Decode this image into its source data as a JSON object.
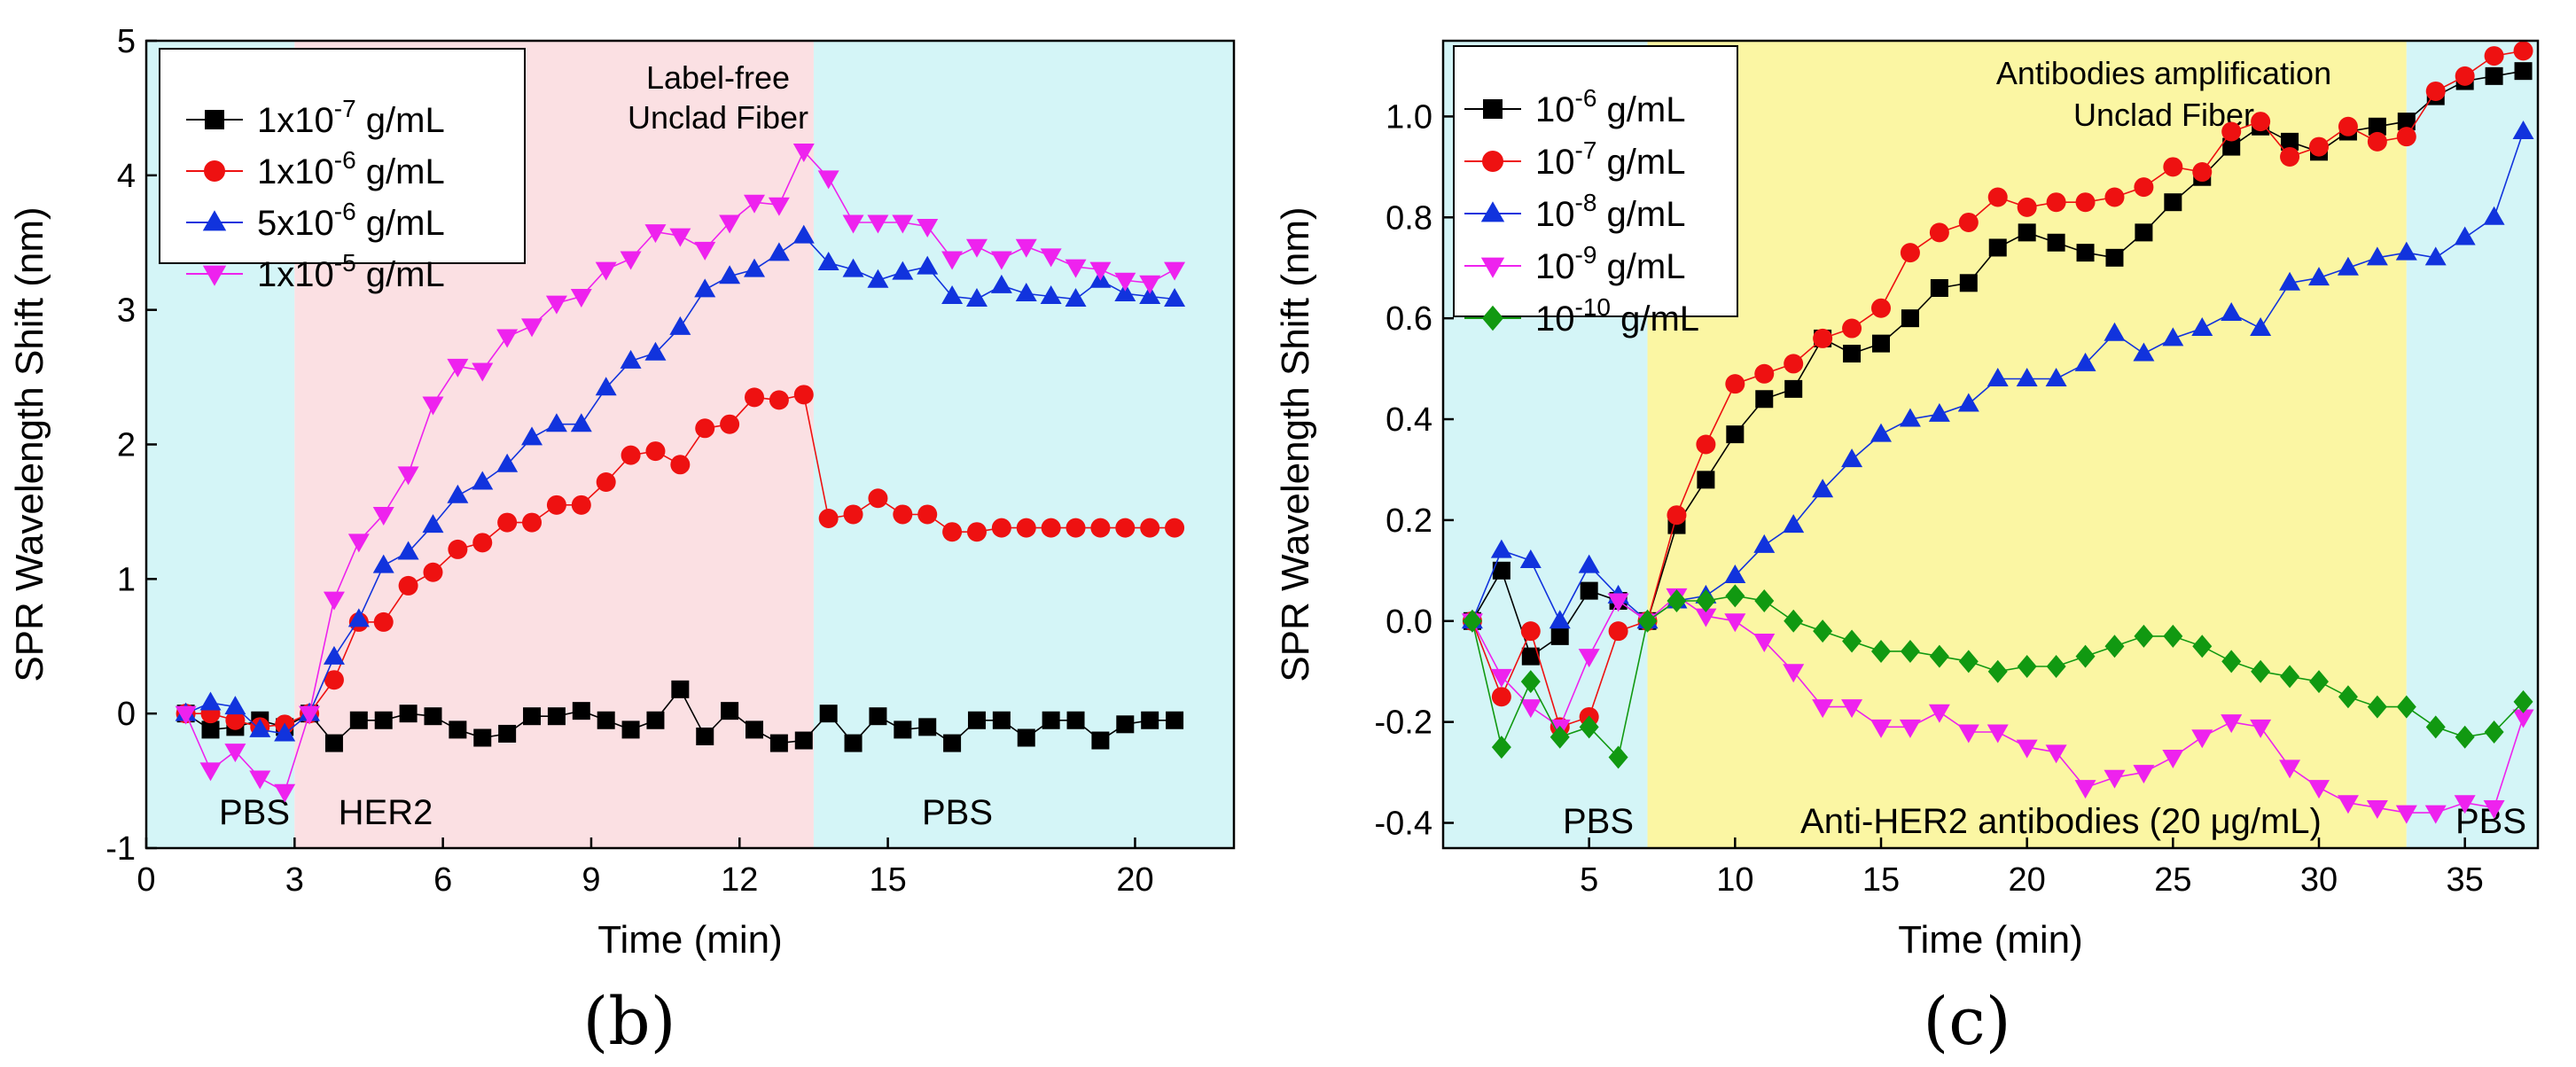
{
  "chart_data": [
    {
      "type": "line",
      "panel_label": "(b)",
      "xlabel": "Time (min)",
      "ylabel": "SPR Wavelength Shift (nm)",
      "xlim": [
        0,
        22
      ],
      "ylim": [
        -1,
        5
      ],
      "xticks": [
        0,
        3,
        6,
        9,
        12,
        15,
        20
      ],
      "yticks": [
        -1,
        0,
        1,
        2,
        3,
        4,
        5
      ],
      "annotation": [
        "Label-free",
        "Unclad Fiber"
      ],
      "regions": [
        {
          "start": 0,
          "end": 3,
          "color": "#d4f5f7",
          "label": "PBS"
        },
        {
          "start": 3,
          "end": 13.5,
          "color": "#fbe0e3",
          "label": "HER2"
        },
        {
          "start": 13.5,
          "end": 22,
          "color": "#d4f5f7",
          "label": "PBS"
        }
      ],
      "legend": [
        {
          "base": "1x10",
          "exp": "-7",
          "unit": " g/mL"
        },
        {
          "base": "1x10",
          "exp": "-6",
          "unit": " g/mL"
        },
        {
          "base": "5x10",
          "exp": "-6",
          "unit": " g/mL"
        },
        {
          "base": "1x10",
          "exp": "-5",
          "unit": " g/mL"
        }
      ],
      "series": [
        {
          "name": "1x10^-7 g/mL",
          "color": "#000000",
          "marker": "square",
          "x": [
            0.8,
            1.3,
            1.8,
            2.3,
            2.8,
            3.3,
            3.8,
            4.3,
            4.8,
            5.3,
            5.8,
            6.3,
            6.8,
            7.3,
            7.8,
            8.3,
            8.8,
            9.3,
            9.8,
            10.3,
            10.8,
            11.3,
            11.8,
            12.3,
            12.8,
            13.3,
            13.8,
            14.3,
            14.8,
            15.3,
            15.8,
            16.3,
            16.8,
            17.3,
            17.8,
            18.3,
            18.8,
            19.3,
            19.8,
            20.3,
            20.8
          ],
          "y": [
            0.0,
            -0.12,
            -0.1,
            -0.05,
            -0.1,
            0.0,
            -0.22,
            -0.05,
            -0.05,
            0.0,
            -0.02,
            -0.12,
            -0.18,
            -0.15,
            -0.02,
            -0.02,
            0.02,
            -0.05,
            -0.12,
            -0.05,
            0.18,
            -0.17,
            0.02,
            -0.12,
            -0.22,
            -0.2,
            0.0,
            -0.22,
            -0.02,
            -0.12,
            -0.1,
            -0.22,
            -0.05,
            -0.05,
            -0.18,
            -0.05,
            -0.05,
            -0.2,
            -0.08,
            -0.05,
            -0.05
          ]
        },
        {
          "name": "1x10^-6 g/mL",
          "color": "#ee1111",
          "marker": "circle",
          "x": [
            0.8,
            1.3,
            1.8,
            2.3,
            2.8,
            3.3,
            3.8,
            4.3,
            4.8,
            5.3,
            5.8,
            6.3,
            6.8,
            7.3,
            7.8,
            8.3,
            8.8,
            9.3,
            9.8,
            10.3,
            10.8,
            11.3,
            11.8,
            12.3,
            12.8,
            13.3,
            13.8,
            14.3,
            14.8,
            15.3,
            15.8,
            16.3,
            16.8,
            17.3,
            17.8,
            18.3,
            18.8,
            19.3,
            19.8,
            20.3,
            20.8
          ],
          "y": [
            0.0,
            0.0,
            -0.05,
            -0.1,
            -0.08,
            0.0,
            0.25,
            0.68,
            0.68,
            0.95,
            1.05,
            1.22,
            1.27,
            1.42,
            1.42,
            1.55,
            1.55,
            1.72,
            1.92,
            1.95,
            1.85,
            2.12,
            2.15,
            2.35,
            2.33,
            2.37,
            1.45,
            1.48,
            1.6,
            1.48,
            1.48,
            1.35,
            1.35,
            1.38,
            1.38,
            1.38,
            1.38,
            1.38,
            1.38,
            1.38,
            1.38
          ]
        },
        {
          "name": "5x10^-6 g/mL",
          "color": "#1133dd",
          "marker": "triangle-up",
          "x": [
            0.8,
            1.3,
            1.8,
            2.3,
            2.8,
            3.3,
            3.8,
            4.3,
            4.8,
            5.3,
            5.8,
            6.3,
            6.8,
            7.3,
            7.8,
            8.3,
            8.8,
            9.3,
            9.8,
            10.3,
            10.8,
            11.3,
            11.8,
            12.3,
            12.8,
            13.3,
            13.8,
            14.3,
            14.8,
            15.3,
            15.8,
            16.3,
            16.8,
            17.3,
            17.8,
            18.3,
            18.8,
            19.3,
            19.8,
            20.3,
            20.8
          ],
          "y": [
            0.0,
            0.08,
            0.05,
            -0.12,
            -0.15,
            0.0,
            0.42,
            0.7,
            1.1,
            1.2,
            1.4,
            1.62,
            1.72,
            1.85,
            2.05,
            2.15,
            2.15,
            2.42,
            2.62,
            2.68,
            2.87,
            3.15,
            3.25,
            3.3,
            3.42,
            3.55,
            3.35,
            3.3,
            3.22,
            3.28,
            3.32,
            3.1,
            3.08,
            3.18,
            3.12,
            3.1,
            3.08,
            3.22,
            3.12,
            3.1,
            3.08
          ]
        },
        {
          "name": "1x10^-5 g/mL",
          "color": "#ee22ee",
          "marker": "triangle-down",
          "x": [
            0.8,
            1.3,
            1.8,
            2.3,
            2.8,
            3.3,
            3.8,
            4.3,
            4.8,
            5.3,
            5.8,
            6.3,
            6.8,
            7.3,
            7.8,
            8.3,
            8.8,
            9.3,
            9.8,
            10.3,
            10.8,
            11.3,
            11.8,
            12.3,
            12.8,
            13.3,
            13.8,
            14.3,
            14.8,
            15.3,
            15.8,
            16.3,
            16.8,
            17.3,
            17.8,
            18.3,
            18.8,
            19.3,
            19.8,
            20.3,
            20.8
          ],
          "y": [
            0.0,
            -0.42,
            -0.28,
            -0.48,
            -0.58,
            0.0,
            0.85,
            1.28,
            1.48,
            1.78,
            2.3,
            2.58,
            2.55,
            2.8,
            2.88,
            3.05,
            3.1,
            3.3,
            3.38,
            3.58,
            3.55,
            3.45,
            3.65,
            3.8,
            3.78,
            4.18,
            3.98,
            3.65,
            3.65,
            3.65,
            3.62,
            3.38,
            3.47,
            3.38,
            3.47,
            3.4,
            3.32,
            3.3,
            3.22,
            3.2,
            3.3
          ]
        }
      ]
    },
    {
      "type": "line",
      "panel_label": "(c)",
      "xlabel": "Time (min)",
      "ylabel": "SPR Wavelength Shift (nm)",
      "xlim": [
        0,
        37.5
      ],
      "ylim": [
        -0.45,
        1.15
      ],
      "xticks": [
        5,
        10,
        15,
        20,
        25,
        30,
        35
      ],
      "yticks": [
        -0.4,
        -0.2,
        0.0,
        0.2,
        0.4,
        0.6,
        0.8,
        1.0
      ],
      "ytick_labels": [
        "-0.4",
        "-0.2",
        "0.0",
        "0.2",
        "0.4",
        "0.6",
        "0.8",
        "1.0"
      ],
      "annotation": [
        "Antibodies amplification",
        "Unclad Fiber"
      ],
      "regions": [
        {
          "start": 0,
          "end": 7,
          "color": "#d4f5f7",
          "label": "PBS"
        },
        {
          "start": 7,
          "end": 33,
          "color": "#fbf6a3",
          "label": "Anti-HER2 antibodies (20 μg/mL)"
        },
        {
          "start": 33,
          "end": 37.5,
          "color": "#d4f5f7",
          "label": "PBS"
        }
      ],
      "legend": [
        {
          "base": "10",
          "exp": "-6",
          "unit": " g/mL"
        },
        {
          "base": "10",
          "exp": "-7",
          "unit": " g/mL"
        },
        {
          "base": "10",
          "exp": "-8",
          "unit": " g/mL"
        },
        {
          "base": "10",
          "exp": "-9",
          "unit": " g/mL"
        },
        {
          "base": "10",
          "exp": "-10",
          "unit": " g/mL"
        }
      ],
      "series": [
        {
          "name": "10^-6 g/mL",
          "color": "#000000",
          "marker": "square",
          "x": [
            1,
            2,
            3,
            4,
            5,
            6,
            7,
            8,
            9,
            10,
            11,
            12,
            13,
            14,
            15,
            16,
            17,
            18,
            19,
            20,
            21,
            22,
            23,
            24,
            25,
            26,
            27,
            28,
            29,
            30,
            31,
            32,
            33,
            34,
            35,
            36,
            37
          ],
          "y": [
            0.0,
            0.1,
            -0.07,
            -0.03,
            0.06,
            0.04,
            0.0,
            0.19,
            0.28,
            0.37,
            0.44,
            0.46,
            0.56,
            0.53,
            0.55,
            0.6,
            0.66,
            0.67,
            0.74,
            0.77,
            0.75,
            0.73,
            0.72,
            0.77,
            0.83,
            0.88,
            0.94,
            0.98,
            0.95,
            0.93,
            0.97,
            0.98,
            0.99,
            1.04,
            1.07,
            1.08,
            1.09
          ]
        },
        {
          "name": "10^-7 g/mL",
          "color": "#ee1111",
          "marker": "circle",
          "x": [
            1,
            2,
            3,
            4,
            5,
            6,
            7,
            8,
            9,
            10,
            11,
            12,
            13,
            14,
            15,
            16,
            17,
            18,
            19,
            20,
            21,
            22,
            23,
            24,
            25,
            26,
            27,
            28,
            29,
            30,
            31,
            32,
            33,
            34,
            35,
            36,
            37
          ],
          "y": [
            0.0,
            -0.15,
            -0.02,
            -0.21,
            -0.19,
            -0.02,
            0.0,
            0.21,
            0.35,
            0.47,
            0.49,
            0.51,
            0.56,
            0.58,
            0.62,
            0.73,
            0.77,
            0.79,
            0.84,
            0.82,
            0.83,
            0.83,
            0.84,
            0.86,
            0.9,
            0.89,
            0.97,
            0.99,
            0.92,
            0.94,
            0.98,
            0.95,
            0.96,
            1.05,
            1.08,
            1.12,
            1.13
          ]
        },
        {
          "name": "10^-8 g/mL",
          "color": "#1133dd",
          "marker": "triangle-up",
          "x": [
            1,
            2,
            3,
            4,
            5,
            6,
            7,
            8,
            9,
            10,
            11,
            12,
            13,
            14,
            15,
            16,
            17,
            18,
            19,
            20,
            21,
            22,
            23,
            24,
            25,
            26,
            27,
            28,
            29,
            30,
            31,
            32,
            33,
            34,
            35,
            36,
            37
          ],
          "y": [
            0.0,
            0.14,
            0.12,
            0.0,
            0.11,
            0.05,
            0.0,
            0.04,
            0.05,
            0.09,
            0.15,
            0.19,
            0.26,
            0.32,
            0.37,
            0.4,
            0.41,
            0.43,
            0.48,
            0.48,
            0.48,
            0.51,
            0.57,
            0.53,
            0.56,
            0.58,
            0.61,
            0.58,
            0.67,
            0.68,
            0.7,
            0.72,
            0.73,
            0.72,
            0.76,
            0.8,
            0.97
          ]
        },
        {
          "name": "10^-9 g/mL",
          "color": "#ee22ee",
          "marker": "triangle-down",
          "x": [
            1,
            2,
            3,
            4,
            5,
            6,
            7,
            8,
            9,
            10,
            11,
            12,
            13,
            14,
            15,
            16,
            17,
            18,
            19,
            20,
            21,
            22,
            23,
            24,
            25,
            26,
            27,
            28,
            29,
            30,
            31,
            32,
            33,
            34,
            35,
            36,
            37
          ],
          "y": [
            0.0,
            -0.11,
            -0.17,
            -0.21,
            -0.07,
            0.04,
            0.0,
            0.05,
            0.01,
            0.0,
            -0.04,
            -0.1,
            -0.17,
            -0.17,
            -0.21,
            -0.21,
            -0.18,
            -0.22,
            -0.22,
            -0.25,
            -0.26,
            -0.33,
            -0.31,
            -0.3,
            -0.27,
            -0.23,
            -0.2,
            -0.21,
            -0.29,
            -0.33,
            -0.36,
            -0.37,
            -0.38,
            -0.38,
            -0.36,
            -0.37,
            -0.19
          ]
        },
        {
          "name": "10^-10 g/mL",
          "color": "#119911",
          "marker": "diamond",
          "x": [
            1,
            2,
            3,
            4,
            5,
            6,
            7,
            8,
            9,
            10,
            11,
            12,
            13,
            14,
            15,
            16,
            17,
            18,
            19,
            20,
            21,
            22,
            23,
            24,
            25,
            26,
            27,
            28,
            29,
            30,
            31,
            32,
            33,
            34,
            35,
            36,
            37
          ],
          "y": [
            0.0,
            -0.25,
            -0.12,
            -0.23,
            -0.21,
            -0.27,
            0.0,
            0.04,
            0.04,
            0.05,
            0.04,
            0.0,
            -0.02,
            -0.04,
            -0.06,
            -0.06,
            -0.07,
            -0.08,
            -0.1,
            -0.09,
            -0.09,
            -0.07,
            -0.05,
            -0.03,
            -0.03,
            -0.05,
            -0.08,
            -0.1,
            -0.11,
            -0.12,
            -0.15,
            -0.17,
            -0.17,
            -0.21,
            -0.23,
            -0.22,
            -0.16
          ]
        }
      ]
    }
  ]
}
